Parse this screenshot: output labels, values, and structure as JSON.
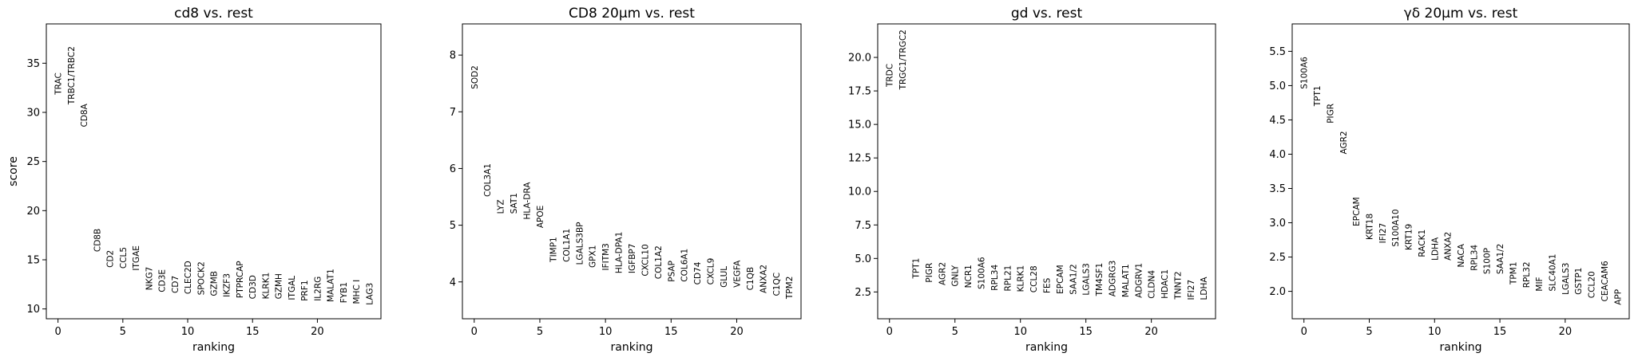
{
  "chart_data": [
    {
      "type": "scatter",
      "title": "cd8 vs. rest",
      "xlabel": "ranking",
      "ylabel": "score",
      "xlim": [
        -0.9,
        24.9
      ],
      "ylim": [
        9.0,
        39.0
      ],
      "xticks": [
        0,
        5,
        10,
        15,
        20
      ],
      "yticks": [
        10,
        15,
        20,
        25,
        30,
        35
      ],
      "genes": [
        "TRAC",
        "TRBC1/TRBC2",
        "CD8A",
        "CD8B",
        "CD2",
        "CCL5",
        "ITGAE",
        "NKG7",
        "CD3E",
        "CD7",
        "CLEC2D",
        "SPOCK2",
        "GZMB",
        "IKZF3",
        "PTPRCAP",
        "CD3D",
        "KLRK1",
        "GZMH",
        "ITGAL",
        "PRF1",
        "IL2RG",
        "MALAT1",
        "FYB1",
        "MHC I",
        "LAG3"
      ],
      "scores": [
        31.8,
        30.8,
        28.5,
        15.8,
        14.2,
        14.1,
        13.9,
        11.9,
        11.7,
        11.6,
        11.5,
        11.4,
        11.3,
        11.2,
        11.1,
        11.0,
        11.0,
        11.0,
        10.9,
        10.8,
        10.8,
        10.7,
        10.6,
        10.5,
        10.4
      ]
    },
    {
      "type": "scatter",
      "title": "CD8 20µm vs. rest",
      "xlabel": "ranking",
      "ylabel": "",
      "xlim": [
        -0.9,
        24.9
      ],
      "ylim": [
        3.35,
        8.55
      ],
      "xticks": [
        0,
        5,
        10,
        15,
        20
      ],
      "yticks": [
        4,
        5,
        6,
        7,
        8
      ],
      "genes": [
        "SOD2",
        "COL3A1",
        "LYZ",
        "SAT1",
        "HLA-DRA",
        "APOE",
        "TIMP1",
        "COL1A1",
        "LGALS3BP",
        "GPX1",
        "IFITM3",
        "HLA-DPA1",
        "IGFBP7",
        "CXCL10",
        "COL1A2",
        "PSAP",
        "COL6A1",
        "CD74",
        "CXCL9",
        "GLUL",
        "VEGFA",
        "C1QB",
        "ANXA2",
        "C1QC",
        "TPM2"
      ],
      "scores": [
        7.4,
        5.5,
        5.2,
        5.2,
        5.1,
        4.95,
        4.35,
        4.35,
        4.3,
        4.25,
        4.2,
        4.15,
        4.15,
        4.1,
        4.05,
        4.0,
        4.0,
        3.95,
        3.95,
        3.9,
        3.9,
        3.85,
        3.8,
        3.75,
        3.7
      ]
    },
    {
      "type": "scatter",
      "title": "gd vs. rest",
      "xlabel": "ranking",
      "ylabel": "",
      "xlim": [
        -0.9,
        24.9
      ],
      "ylim": [
        0.5,
        22.5
      ],
      "xticks": [
        0,
        5,
        10,
        15,
        20
      ],
      "yticks": [
        2.5,
        5.0,
        7.5,
        10.0,
        12.5,
        15.0,
        17.5,
        20.0
      ],
      "ytick_labels": [
        "2.5",
        "5.0",
        "7.5",
        "10.0",
        "12.5",
        "15.0",
        "17.5",
        "20.0"
      ],
      "genes": [
        "TRDC",
        "TRGC1/TRGC2",
        "TPT1",
        "PIGR",
        "AGR2",
        "GNLY",
        "NCR1",
        "S100A6",
        "RPL34",
        "RPL21",
        "KLRK1",
        "CCL28",
        "FES",
        "EPCAM",
        "SAA1/2",
        "LGALS3",
        "TM4SF1",
        "ADGRG3",
        "MALAT1",
        "ADGRV1",
        "CLDN4",
        "HDAC1",
        "TNNT2",
        "IFI27",
        "LDHA"
      ],
      "scores": [
        17.8,
        17.6,
        3.5,
        3.2,
        3.0,
        2.9,
        2.8,
        2.7,
        2.6,
        2.55,
        2.5,
        2.45,
        2.4,
        2.35,
        2.3,
        2.25,
        2.2,
        2.15,
        2.1,
        2.05,
        2.0,
        2.0,
        1.95,
        1.9,
        1.9
      ]
    },
    {
      "type": "scatter",
      "title": "γδ 20µm vs. rest",
      "xlabel": "ranking",
      "ylabel": "",
      "xlim": [
        -0.9,
        24.9
      ],
      "ylim": [
        1.6,
        5.9
      ],
      "xticks": [
        0,
        5,
        10,
        15,
        20
      ],
      "yticks": [
        2.0,
        2.5,
        3.0,
        3.5,
        4.0,
        4.5,
        5.0,
        5.5
      ],
      "ytick_labels": [
        "2.0",
        "2.5",
        "3.0",
        "3.5",
        "4.0",
        "4.5",
        "5.0",
        "5.5"
      ],
      "genes": [
        "S100A6",
        "TPT1",
        "PIGR",
        "AGR2",
        "EPCAM",
        "KRT18",
        "IFI27",
        "S100A10",
        "KRT19",
        "RACK1",
        "LDHA",
        "ANXA2",
        "NACA",
        "RPL34",
        "S100P",
        "SAA1/2",
        "TPM1",
        "RPL32",
        "MIF",
        "SLC40A1",
        "LGALS3",
        "GSTP1",
        "CCL20",
        "CEACAM6",
        "APP"
      ],
      "scores": [
        4.95,
        4.7,
        4.45,
        4.0,
        2.95,
        2.75,
        2.7,
        2.65,
        2.6,
        2.5,
        2.45,
        2.45,
        2.35,
        2.3,
        2.25,
        2.25,
        2.1,
        2.05,
        2.0,
        2.0,
        1.95,
        1.95,
        1.9,
        1.85,
        1.8
      ]
    }
  ]
}
